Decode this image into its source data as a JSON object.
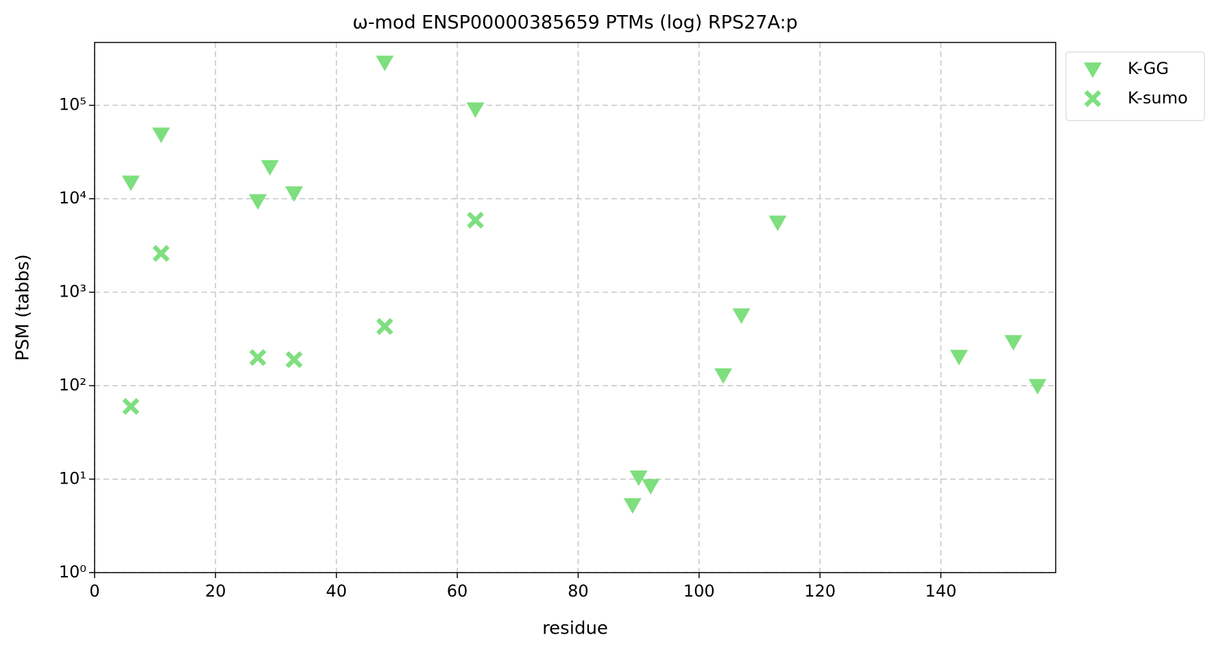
{
  "chart_data": {
    "type": "scatter",
    "title": "ω-mod ENSP00000385659 PTMs (log) RPS27A:p",
    "xlabel": "residue",
    "ylabel": "PSM (tabbs)",
    "xlim": [
      0,
      159
    ],
    "ylim": [
      1,
      470000
    ],
    "log_y": true,
    "grid": true,
    "legend": "outside upper right",
    "xticks": [
      0,
      20,
      40,
      60,
      80,
      100,
      120,
      140
    ],
    "yticks": [
      {
        "value": 1,
        "label": "10⁰"
      },
      {
        "value": 10,
        "label": "10¹"
      },
      {
        "value": 100,
        "label": "10²"
      },
      {
        "value": 1000,
        "label": "10³"
      },
      {
        "value": 10000,
        "label": "10⁴"
      },
      {
        "value": 100000,
        "label": "10⁵"
      }
    ],
    "series": [
      {
        "name": "K-GG",
        "color": "#77dd77",
        "marker": "triangle-down",
        "x": [
          6,
          11,
          27,
          29,
          33,
          48,
          63,
          89,
          90,
          92,
          104,
          107,
          113,
          143,
          152,
          156
        ],
        "values": [
          15000,
          49000,
          9500,
          22000,
          11500,
          288000,
          91000,
          5.3,
          10.5,
          8.5,
          130,
          570,
          5600,
          205,
          295,
          100
        ]
      },
      {
        "name": "K-sumo",
        "color": "#77dd77",
        "marker": "x",
        "x": [
          6,
          11,
          27,
          33,
          48,
          63
        ],
        "values": [
          60,
          2600,
          200,
          190,
          430,
          5900
        ]
      }
    ]
  }
}
